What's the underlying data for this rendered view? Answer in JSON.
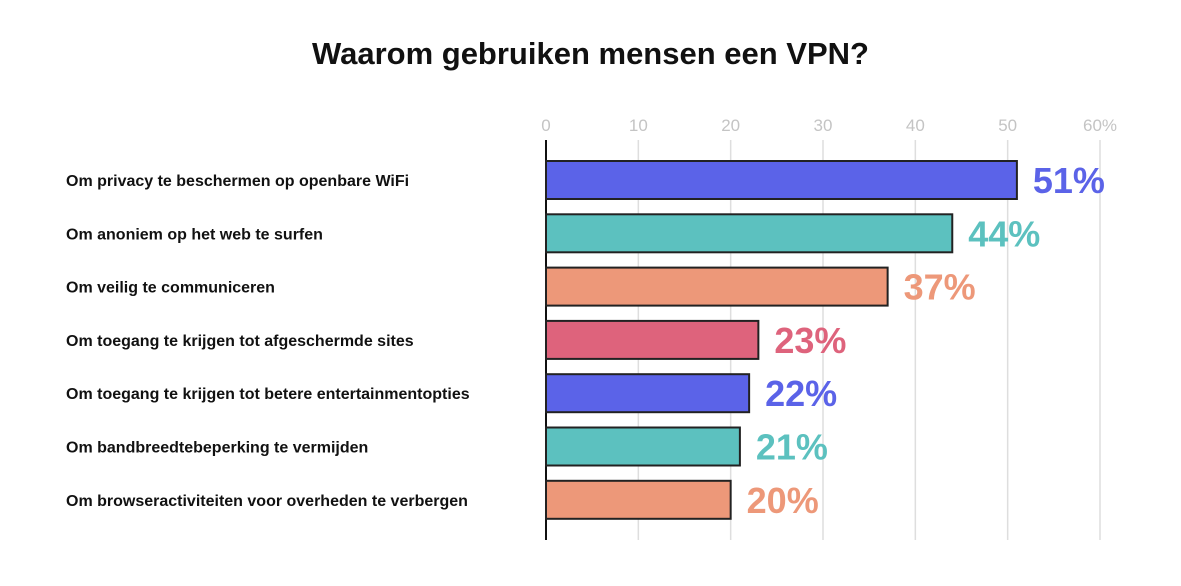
{
  "chart_data": {
    "type": "bar",
    "orientation": "horizontal",
    "title": "Waarom gebruiken mensen een VPN?",
    "xlim": [
      0,
      60
    ],
    "x_ticks": [
      "0",
      "10",
      "20",
      "30",
      "40",
      "50",
      "60%"
    ],
    "grid": true,
    "categories": [
      "Om privacy te beschermen op openbare WiFi",
      "Om anoniem op het web te surfen",
      "Om veilig te communiceren",
      "Om toegang te krijgen tot afgeschermde sites",
      "Om toegang te krijgen tot betere entertainmentopties",
      "Om bandbreedtebeperking te vermijden",
      "Om browseractiviteiten voor overheden te verbergen"
    ],
    "values": [
      51,
      44,
      37,
      23,
      22,
      21,
      20
    ],
    "data_labels": [
      "51%",
      "44%",
      "37%",
      "23%",
      "22%",
      "21%",
      "20%"
    ],
    "colors": [
      "#5b63e8",
      "#5cc1bf",
      "#ed9879",
      "#de637c",
      "#5b63e8",
      "#5cc1bf",
      "#ed9879"
    ]
  }
}
